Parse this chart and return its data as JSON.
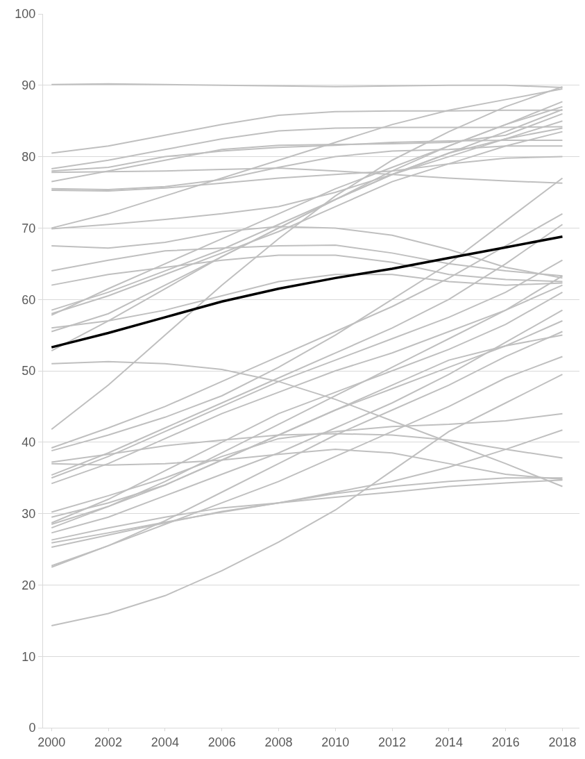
{
  "chart_data": {
    "type": "line",
    "x": [
      2000,
      2002,
      2004,
      2006,
      2008,
      2010,
      2012,
      2014,
      2016,
      2018
    ],
    "xlim": [
      1999.7,
      2018.6
    ],
    "xticks": [
      2000,
      2002,
      2004,
      2006,
      2008,
      2010,
      2012,
      2014,
      2016,
      2018
    ],
    "ylim": [
      0,
      100
    ],
    "yticks": [
      0,
      10,
      20,
      30,
      40,
      50,
      60,
      70,
      80,
      90,
      100
    ],
    "grid": "y",
    "marker": "none",
    "line_style": "solid",
    "series": [
      {
        "color": "#bfbfbf",
        "values": [
          90.1,
          90.2,
          90.1,
          90.0,
          89.9,
          89.8,
          89.9,
          90.0,
          90.0,
          89.7
        ]
      },
      {
        "color": "#bfbfbf",
        "values": [
          80.5,
          81.5,
          83,
          84.5,
          85.8,
          86.3,
          86.4,
          86.4,
          86.5,
          86.5
        ]
      },
      {
        "color": "#bfbfbf",
        "values": [
          78.3,
          79.5,
          81,
          82.5,
          83.6,
          84,
          84.1,
          84.1,
          84.1,
          84.2
        ]
      },
      {
        "color": "#bfbfbf",
        "values": [
          78,
          78.5,
          80,
          80.8,
          81.3,
          81.6,
          82,
          82.2,
          82.3,
          82.3
        ]
      },
      {
        "color": "#bfbfbf",
        "values": [
          77.8,
          77.9,
          78,
          78.2,
          78.4,
          78,
          77.5,
          77,
          76.6,
          76.3
        ]
      },
      {
        "color": "#bfbfbf",
        "values": [
          76.5,
          78,
          79.5,
          81,
          81.6,
          81.7,
          81.8,
          82,
          83,
          86
        ]
      },
      {
        "color": "#bfbfbf",
        "values": [
          75.5,
          75.4,
          75.8,
          76.8,
          78.5,
          80,
          80.8,
          81,
          81.5,
          81.5
        ]
      },
      {
        "color": "#bfbfbf",
        "values": [
          75.3,
          75.2,
          75.6,
          76.3,
          77,
          77.5,
          78,
          79,
          79.8,
          80
        ]
      },
      {
        "color": "#bfbfbf",
        "values": [
          70,
          72,
          74.5,
          77,
          79.5,
          82,
          84.5,
          86.5,
          88,
          89.5
        ]
      },
      {
        "color": "#bfbfbf",
        "values": [
          69.9,
          70.5,
          71.2,
          72,
          73,
          75,
          77.5,
          80,
          82.5,
          85
        ]
      },
      {
        "color": "#bfbfbf",
        "values": [
          67.5,
          67.2,
          68,
          69.5,
          70.2,
          70,
          69,
          67,
          64.5,
          63
        ]
      },
      {
        "color": "#bfbfbf",
        "values": [
          64,
          65.5,
          66.8,
          67.2,
          67.5,
          67.6,
          66.5,
          65,
          64,
          63.3
        ]
      },
      {
        "color": "#bfbfbf",
        "values": [
          62,
          63.5,
          64.5,
          65.5,
          66.2,
          66.2,
          65.2,
          63.5,
          62.8,
          62.5
        ]
      },
      {
        "color": "#bfbfbf",
        "values": [
          58.5,
          61,
          64,
          67,
          70.5,
          74,
          77.5,
          80.5,
          82.5,
          84
        ]
      },
      {
        "color": "#bfbfbf",
        "values": [
          58,
          60.5,
          63.5,
          66.5,
          69.5,
          73,
          76.5,
          79,
          81.5,
          83.5
        ]
      },
      {
        "color": "#bfbfbf",
        "values": [
          57.8,
          61.5,
          65,
          68.5,
          72,
          75.5,
          78.5,
          81.5,
          84.5,
          87
        ]
      },
      {
        "color": "#bfbfbf",
        "values": [
          56,
          57,
          58.5,
          60.5,
          62.5,
          63.5,
          63.5,
          62.5,
          62,
          62.3
        ]
      },
      {
        "color": "#bfbfbf",
        "values": [
          55.5,
          58,
          62,
          66,
          70,
          74,
          77.5,
          80.5,
          83.5,
          86.6
        ]
      },
      {
        "color": "#bfbfbf",
        "values": [
          52.8,
          57,
          61.5,
          66,
          70,
          74,
          78,
          81.5,
          84.5,
          87.7
        ]
      },
      {
        "color": "#bfbfbf",
        "values": [
          51,
          51.3,
          51,
          50.2,
          48.5,
          46,
          43,
          40,
          37,
          33.8
        ]
      },
      {
        "color": "#bfbfbf",
        "values": [
          41.8,
          48,
          55,
          62,
          68.5,
          74.5,
          79.5,
          83.5,
          87,
          89.8
        ]
      },
      {
        "color": "#bfbfbf",
        "values": [
          39.2,
          42,
          45,
          48.5,
          52,
          55.5,
          59,
          63,
          67.5,
          72
        ]
      },
      {
        "color": "#bfbfbf",
        "values": [
          38.8,
          41,
          43.5,
          46.5,
          50.5,
          55,
          60,
          65,
          71,
          77
        ]
      },
      {
        "color": "#bfbfbf",
        "values": [
          37.2,
          38.3,
          39.5,
          40.3,
          41,
          41.2,
          41,
          40.3,
          39,
          37.8
        ]
      },
      {
        "color": "#bfbfbf",
        "values": [
          37,
          36.8,
          37,
          37.5,
          38.3,
          39,
          38.5,
          37,
          35.5,
          34.8
        ]
      },
      {
        "color": "#bfbfbf",
        "values": [
          35.4,
          38.5,
          42,
          45.5,
          49,
          52.5,
          56,
          60,
          65,
          70.5
        ]
      },
      {
        "color": "#bfbfbf",
        "values": [
          35,
          38,
          41.5,
          45,
          48.5,
          51.5,
          54.5,
          57.5,
          61,
          65.5
        ]
      },
      {
        "color": "#bfbfbf",
        "values": [
          34.2,
          37,
          40.5,
          44,
          47,
          50,
          52.5,
          55.5,
          58.5,
          62
        ]
      },
      {
        "color": "#bfbfbf",
        "values": [
          30.2,
          32.5,
          35,
          38,
          40.5,
          41.5,
          42.2,
          42.5,
          43,
          44
        ]
      },
      {
        "color": "#bfbfbf",
        "values": [
          28.7,
          32,
          36,
          40,
          44,
          47,
          50,
          53,
          56.5,
          61
        ]
      },
      {
        "color": "#bfbfbf",
        "values": [
          28,
          31,
          34.5,
          38.5,
          42.5,
          46.5,
          50.5,
          54.5,
          58.5,
          63.3
        ]
      },
      {
        "color": "#bfbfbf",
        "values": [
          27.3,
          29.5,
          32.5,
          35.5,
          38.5,
          42,
          45.5,
          49.5,
          54,
          58.5
        ]
      },
      {
        "color": "#bfbfbf",
        "values": [
          26.3,
          28,
          29.5,
          30.8,
          31.5,
          32.3,
          33,
          33.8,
          34.3,
          34.7
        ]
      },
      {
        "color": "#bfbfbf",
        "values": [
          25.3,
          27,
          28.7,
          30.3,
          31.5,
          32.8,
          33.8,
          34.5,
          35,
          35
        ]
      },
      {
        "color": "#bfbfbf",
        "values": [
          22.7,
          25.5,
          28.5,
          31.5,
          34.5,
          38,
          41.5,
          45,
          49,
          52
        ]
      },
      {
        "color": "#bfbfbf",
        "values": [
          22.5,
          25.5,
          29,
          33,
          37,
          41,
          44.5,
          48,
          52,
          55.5
        ]
      },
      {
        "color": "#bfbfbf",
        "values": [
          14.3,
          16,
          18.5,
          22,
          26,
          30.5,
          36,
          41.5,
          45.5,
          49.5
        ]
      },
      {
        "color": "#bfbfbf",
        "values": [
          29.5,
          31.5,
          34,
          37.5,
          41,
          44.5,
          47.5,
          50.5,
          53.5,
          57
        ]
      },
      {
        "color": "#bfbfbf",
        "values": [
          25.9,
          27.3,
          28.8,
          30.2,
          31.5,
          33,
          34.5,
          36.5,
          39,
          41.7
        ]
      },
      {
        "color": "#bfbfbf",
        "values": [
          28.5,
          31,
          34,
          37.5,
          41,
          44.5,
          48,
          51.5,
          53.5,
          55
        ]
      },
      {
        "color": "#000000",
        "values": [
          53.3,
          55.3,
          57.5,
          59.7,
          61.5,
          63,
          64.3,
          65.8,
          67.3,
          68.8
        ]
      }
    ]
  }
}
